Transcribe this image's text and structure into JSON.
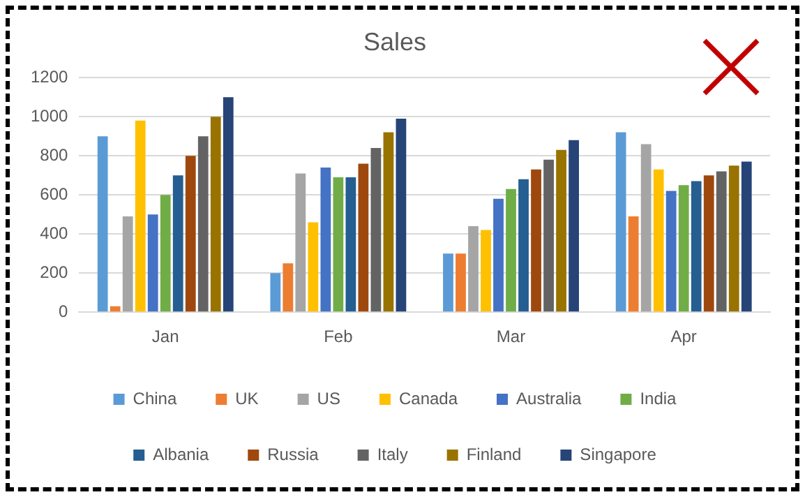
{
  "chart_data": {
    "type": "bar",
    "title": "Sales",
    "categories": [
      "Jan",
      "Feb",
      "Mar",
      "Apr"
    ],
    "series": [
      {
        "name": "China",
        "color": "#5b9bd5",
        "values": [
          900,
          200,
          300,
          920
        ]
      },
      {
        "name": "UK",
        "color": "#ed7d31",
        "values": [
          30,
          250,
          300,
          490
        ]
      },
      {
        "name": "US",
        "color": "#a5a5a5",
        "values": [
          490,
          710,
          440,
          860
        ]
      },
      {
        "name": "Canada",
        "color": "#ffc000",
        "values": [
          980,
          460,
          420,
          730
        ]
      },
      {
        "name": "Australia",
        "color": "#4472c4",
        "values": [
          500,
          740,
          580,
          620
        ]
      },
      {
        "name": "India",
        "color": "#70ad47",
        "values": [
          600,
          690,
          630,
          650
        ]
      },
      {
        "name": "Albania",
        "color": "#255e91",
        "values": [
          700,
          690,
          680,
          670
        ]
      },
      {
        "name": "Russia",
        "color": "#9e480e",
        "values": [
          800,
          760,
          730,
          700
        ]
      },
      {
        "name": "Italy",
        "color": "#636363",
        "values": [
          900,
          840,
          780,
          720
        ]
      },
      {
        "name": "Finland",
        "color": "#997300",
        "values": [
          1000,
          920,
          830,
          750
        ]
      },
      {
        "name": "Singapore",
        "color": "#264478",
        "values": [
          1100,
          990,
          880,
          770
        ]
      }
    ],
    "ylim": [
      0,
      1200
    ],
    "yticks": [
      0,
      200,
      400,
      600,
      800,
      1000,
      1200
    ],
    "grid": "y",
    "legend": "bottom"
  }
}
